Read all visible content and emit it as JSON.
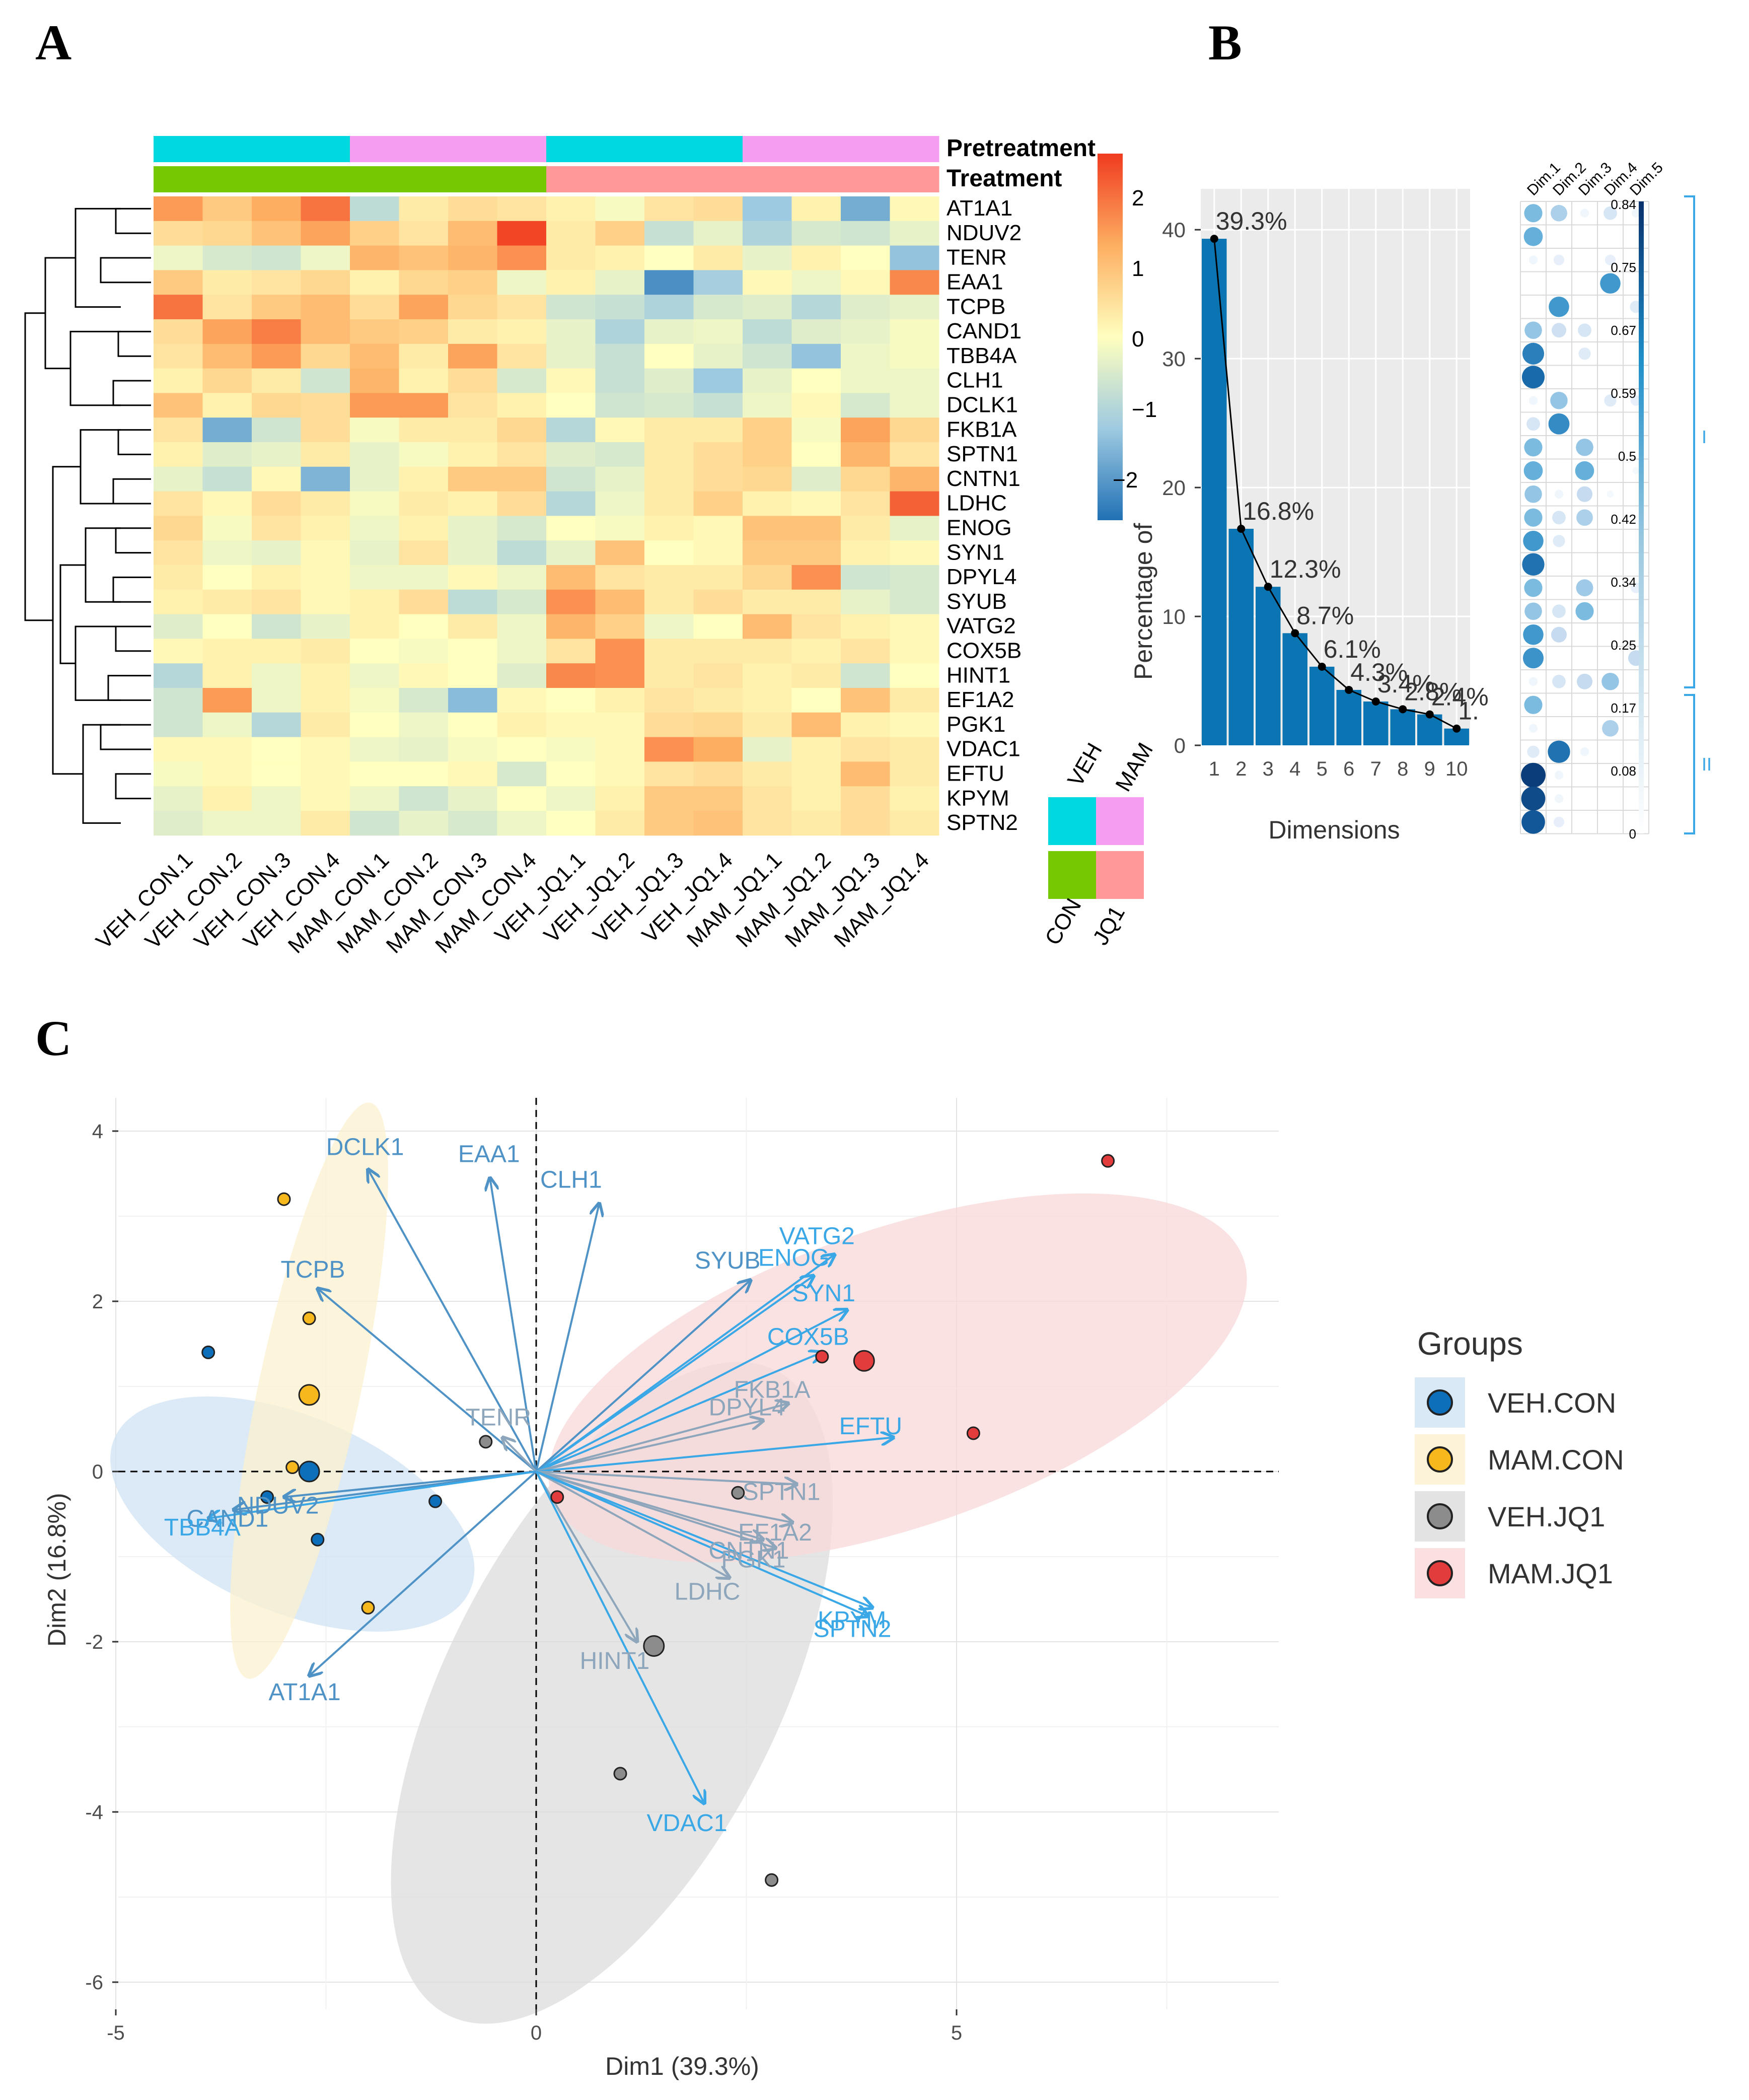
{
  "panels": {
    "a": "A",
    "b": "B",
    "c": "C"
  },
  "colors": {
    "veh": "#00d8e0",
    "mam": "#f59df0",
    "con": "#76c800",
    "jq1": "#ff9898",
    "bar": "#0b74b2",
    "arrow": "#3aa7e6",
    "arrow_dark": "#7fa3bf",
    "veh_con": "#0d6fba",
    "mam_con": "#f7b81e",
    "veh_jq1": "#8c8c8c",
    "mam_jq1": "#e23c3c"
  },
  "chart_data": [
    {
      "type": "heatmap",
      "id": "A",
      "annotation_labels": [
        "Pretreatment",
        "Treatment"
      ],
      "legend_labels": {
        "veh": "VEH",
        "mam": "MAM",
        "con": "CON",
        "jq1": "JQ1"
      },
      "color_scale": {
        "ticks": [
          "2",
          "1",
          "0",
          "−1",
          "−2"
        ],
        "range": [
          -2.4,
          2.4
        ]
      },
      "columns": [
        "VEH_CON.1",
        "VEH_CON.2",
        "VEH_CON.3",
        "VEH_CON.4",
        "MAM_CON.1",
        "MAM_CON.2",
        "MAM_CON.3",
        "MAM_CON.4",
        "VEH_JQ1.1",
        "VEH_JQ1.2",
        "VEH_JQ1.3",
        "VEH_JQ1.4",
        "MAM_JQ1.1",
        "MAM_JQ1.2",
        "MAM_JQ1.3",
        "MAM_JQ1.4"
      ],
      "column_pretreatment": [
        "veh",
        "veh",
        "veh",
        "veh",
        "mam",
        "mam",
        "mam",
        "mam",
        "veh",
        "veh",
        "veh",
        "veh",
        "mam",
        "mam",
        "mam",
        "mam"
      ],
      "column_treatment": [
        "con",
        "con",
        "con",
        "con",
        "con",
        "con",
        "con",
        "con",
        "jq1",
        "jq1",
        "jq1",
        "jq1",
        "jq1",
        "jq1",
        "jq1",
        "jq1"
      ],
      "rows": [
        "AT1A1",
        "NDUV2",
        "TENR",
        "EAA1",
        "TCPB",
        "CAND1",
        "TBB4A",
        "CLH1",
        "DCLK1",
        "FKB1A",
        "SPTN1",
        "CNTN1",
        "LDHC",
        "ENOG",
        "SYN1",
        "DPYL4",
        "SYUB",
        "VATG2",
        "COX5B",
        "HINT1",
        "EF1A2",
        "PGK1",
        "VDAC1",
        "EFTU",
        "KPYM",
        "SPTN2"
      ],
      "values": [
        [
          1.4,
          0.8,
          1.2,
          1.8,
          -0.8,
          0.3,
          0.5,
          0.4,
          0.2,
          -0.1,
          0.4,
          0.5,
          -1.2,
          0.2,
          -1.6,
          0.1
        ],
        [
          0.5,
          0.6,
          0.9,
          1.3,
          0.7,
          0.4,
          1.0,
          2.3,
          0.3,
          0.7,
          -0.7,
          -0.3,
          -1.0,
          -0.5,
          -0.6,
          -0.3
        ],
        [
          -0.2,
          -0.5,
          -0.6,
          -0.2,
          1.1,
          0.9,
          1.1,
          1.5,
          0.3,
          0.2,
          0.0,
          0.3,
          -0.3,
          0.2,
          0.0,
          -1.3
        ],
        [
          0.8,
          0.3,
          0.4,
          0.6,
          0.2,
          0.6,
          0.7,
          -0.2,
          0.2,
          -0.3,
          -2.0,
          -1.1,
          0.1,
          -0.2,
          0.1,
          1.6
        ],
        [
          1.8,
          0.4,
          0.8,
          1.0,
          0.5,
          1.3,
          0.6,
          0.4,
          -0.6,
          -0.7,
          -1.0,
          -0.5,
          -0.4,
          -0.9,
          -0.4,
          -0.3
        ],
        [
          0.5,
          1.3,
          1.7,
          1.0,
          0.8,
          0.7,
          0.3,
          0.2,
          -0.3,
          -1.0,
          -0.3,
          -0.2,
          -0.8,
          -0.4,
          -0.3,
          -0.1
        ],
        [
          0.4,
          1.0,
          1.4,
          0.6,
          1.0,
          0.3,
          1.3,
          0.4,
          -0.3,
          -0.7,
          0.0,
          -0.3,
          -0.6,
          -1.3,
          -0.2,
          -0.1
        ],
        [
          0.2,
          0.6,
          0.3,
          -0.6,
          1.1,
          0.2,
          0.5,
          -0.5,
          0.1,
          -0.7,
          -0.4,
          -1.2,
          -0.3,
          0.0,
          -0.2,
          -0.2
        ],
        [
          0.9,
          0.2,
          0.6,
          0.5,
          1.4,
          1.4,
          0.4,
          0.2,
          0.0,
          -0.6,
          -0.5,
          -0.7,
          -0.2,
          0.1,
          -0.5,
          -0.2
        ],
        [
          0.4,
          -1.6,
          -0.6,
          0.5,
          -0.1,
          0.3,
          0.3,
          0.6,
          -0.9,
          0.1,
          0.3,
          0.3,
          0.7,
          -0.1,
          1.3,
          0.6
        ],
        [
          0.2,
          -0.4,
          -0.3,
          0.3,
          -0.3,
          -0.1,
          0.2,
          0.4,
          -0.4,
          -0.5,
          0.3,
          0.5,
          0.7,
          0.0,
          1.1,
          0.4
        ],
        [
          -0.3,
          -0.7,
          0.1,
          -1.5,
          -0.3,
          0.2,
          0.8,
          0.8,
          -0.6,
          -0.3,
          0.3,
          0.5,
          0.6,
          -0.4,
          0.6,
          1.1
        ],
        [
          0.4,
          0.1,
          0.5,
          0.3,
          -0.1,
          0.3,
          0.2,
          0.5,
          -0.9,
          -0.2,
          0.3,
          0.7,
          0.2,
          0.1,
          0.4,
          2.0
        ],
        [
          0.6,
          -0.1,
          0.4,
          0.2,
          -0.2,
          0.2,
          -0.3,
          -0.5,
          0.0,
          -0.1,
          0.2,
          0.1,
          0.9,
          0.9,
          0.3,
          -0.3
        ],
        [
          0.4,
          -0.2,
          -0.3,
          0.1,
          -0.3,
          0.4,
          -0.3,
          -0.8,
          -0.3,
          0.9,
          0.0,
          0.1,
          0.8,
          0.8,
          0.2,
          0.1
        ],
        [
          0.3,
          0.0,
          0.2,
          0.1,
          -0.2,
          -0.2,
          0.1,
          -0.2,
          1.0,
          0.4,
          0.3,
          0.3,
          0.6,
          1.5,
          -0.6,
          -0.5
        ],
        [
          0.2,
          0.3,
          0.4,
          0.1,
          0.2,
          0.5,
          -0.8,
          -0.5,
          1.5,
          1.0,
          0.3,
          0.5,
          0.3,
          0.3,
          -0.3,
          -0.5
        ],
        [
          -0.4,
          0.0,
          -0.6,
          -0.3,
          0.2,
          0.0,
          0.3,
          -0.2,
          1.1,
          0.7,
          -0.2,
          0.0,
          1.0,
          0.4,
          0.2,
          0.1
        ],
        [
          0.1,
          0.2,
          0.2,
          0.3,
          0.0,
          -0.1,
          0.0,
          -0.2,
          0.4,
          1.5,
          0.3,
          0.3,
          0.3,
          0.2,
          0.4,
          0.1
        ],
        [
          -0.9,
          0.2,
          -0.2,
          0.2,
          -0.2,
          0.1,
          0.0,
          -0.4,
          1.6,
          1.5,
          0.3,
          0.4,
          0.2,
          0.3,
          -0.6,
          0.0
        ],
        [
          -0.6,
          1.4,
          -0.2,
          0.2,
          -0.1,
          -0.5,
          -1.4,
          0.1,
          0.0,
          0.2,
          0.4,
          0.3,
          0.2,
          0.0,
          0.9,
          0.3
        ],
        [
          -0.6,
          -0.2,
          -0.9,
          0.3,
          0.0,
          -0.2,
          0.0,
          0.2,
          0.1,
          0.1,
          0.5,
          0.6,
          0.3,
          1.0,
          0.2,
          0.1
        ],
        [
          0.1,
          0.1,
          0.0,
          0.1,
          -0.2,
          -0.3,
          -0.1,
          0.0,
          -0.1,
          0.1,
          1.5,
          1.2,
          -0.3,
          0.2,
          0.4,
          0.3
        ],
        [
          -0.1,
          0.1,
          0.0,
          0.1,
          0.0,
          0.0,
          0.1,
          -0.5,
          0.0,
          0.1,
          0.4,
          0.5,
          0.3,
          0.2,
          1.0,
          0.3
        ],
        [
          -0.3,
          0.2,
          -0.2,
          0.1,
          -0.2,
          -0.6,
          -0.3,
          0.0,
          -0.2,
          0.2,
          0.8,
          0.8,
          0.4,
          0.2,
          0.5,
          0.2
        ],
        [
          -0.4,
          -0.2,
          -0.2,
          0.3,
          -0.6,
          -0.3,
          -0.5,
          -0.2,
          0.0,
          0.3,
          0.8,
          0.9,
          0.4,
          0.3,
          0.5,
          0.3
        ]
      ]
    },
    {
      "type": "bar",
      "id": "B-scree",
      "xlabel": "Dimensions",
      "ylabel": "Percentage of",
      "categories": [
        "1",
        "2",
        "3",
        "4",
        "5",
        "6",
        "7",
        "8",
        "9",
        "10"
      ],
      "values": [
        39.3,
        16.8,
        12.3,
        8.7,
        6.1,
        4.3,
        3.4,
        2.8,
        2.4,
        1.3
      ],
      "data_labels": [
        "39.3%",
        "16.8%",
        "12.3%",
        "8.7%",
        "6.1%",
        "4.3%",
        "3.4%",
        "2.8%",
        "2.4%",
        "1."
      ],
      "ylim": [
        0,
        42
      ],
      "yticks": [
        "0",
        "10",
        "20",
        "30",
        "40"
      ],
      "line_overlay": true
    },
    {
      "type": "heatmap",
      "id": "B-dotplot",
      "columns": [
        "Dim.1",
        "Dim.2",
        "Dim.3",
        "Dim.4",
        "Dim.5"
      ],
      "color_ticks": [
        "0.84",
        "0.75",
        "0.67",
        "0.59",
        "0.5",
        "0.42",
        "0.34",
        "0.25",
        "0.17",
        "0.08",
        "0"
      ],
      "bracket_labels": [
        "I",
        "II"
      ],
      "values": [
        [
          0.45,
          0.35,
          0.05,
          0.2,
          0.05
        ],
        [
          0.5,
          0.0,
          0.0,
          0.0,
          0.0
        ],
        [
          0.05,
          0.1,
          0.0,
          0.1,
          0.0
        ],
        [
          0.0,
          0.0,
          0.0,
          0.6,
          0.0
        ],
        [
          0.0,
          0.6,
          0.0,
          0.0,
          0.15
        ],
        [
          0.4,
          0.25,
          0.2,
          0.0,
          0.0
        ],
        [
          0.7,
          0.0,
          0.15,
          0.0,
          0.0
        ],
        [
          0.78,
          0.0,
          0.0,
          0.0,
          0.0
        ],
        [
          0.05,
          0.4,
          0.0,
          0.15,
          0.1
        ],
        [
          0.2,
          0.65,
          0.0,
          0.0,
          0.0
        ],
        [
          0.45,
          0.0,
          0.4,
          0.0,
          0.0
        ],
        [
          0.5,
          0.0,
          0.5,
          0.0,
          0.02
        ],
        [
          0.4,
          0.05,
          0.3,
          0.02,
          0.0
        ],
        [
          0.45,
          0.2,
          0.35,
          0.0,
          0.0
        ],
        [
          0.6,
          0.15,
          0.0,
          0.0,
          0.0
        ],
        [
          0.75,
          0.0,
          0.0,
          0.0,
          0.0
        ],
        [
          0.45,
          0.0,
          0.38,
          0.0,
          0.1
        ],
        [
          0.4,
          0.2,
          0.45,
          0.0,
          0.0
        ],
        [
          0.6,
          0.3,
          0.0,
          0.0,
          0.0
        ],
        [
          0.62,
          0.0,
          0.0,
          0.0,
          0.3
        ],
        [
          0.05,
          0.2,
          0.3,
          0.4,
          0.0
        ],
        [
          0.45,
          0.0,
          0.0,
          0.0,
          0.0
        ],
        [
          0.05,
          0.0,
          0.0,
          0.35,
          0.0
        ],
        [
          0.15,
          0.75,
          0.05,
          0.0,
          0.0
        ],
        [
          0.95,
          0.05,
          0.0,
          0.0,
          0.0
        ],
        [
          0.9,
          0.05,
          0.0,
          0.0,
          0.0
        ],
        [
          0.85,
          0.1,
          0.0,
          0.0,
          0.0
        ]
      ]
    },
    {
      "type": "scatter",
      "id": "C-biplot",
      "xlabel": "Dim1 (39.3%)",
      "ylabel": "Dim2 (16.8%)",
      "xlim": [
        -5,
        8.8
      ],
      "ylim": [
        -6.3,
        4.2
      ],
      "xticks": [
        "-5",
        "0",
        "5"
      ],
      "xtick_values": [
        -5,
        0,
        5
      ],
      "yticks": [
        "4",
        "2",
        "0",
        "-2",
        "-4",
        "-6"
      ],
      "ytick_values": [
        4,
        2,
        0,
        -2,
        -4,
        -6
      ],
      "legend": {
        "title": "Groups",
        "entries": [
          "VEH.CON",
          "MAM.CON",
          "VEH.JQ1",
          "MAM.JQ1"
        ]
      },
      "ellipses": [
        {
          "group": "VEH.CON",
          "cx": -2.9,
          "cy": -0.5,
          "rx": 2.3,
          "ry": 1.15,
          "angle": -23
        },
        {
          "group": "MAM.CON",
          "cx": -2.7,
          "cy": 0.95,
          "rx": 3.5,
          "ry": 0.6,
          "angle": 78
        },
        {
          "group": "VEH.JQ1",
          "cx": 0.9,
          "cy": -2.6,
          "rx": 4.3,
          "ry": 1.95,
          "angle": 63
        },
        {
          "group": "MAM.JQ1",
          "cx": 4.3,
          "cy": 1.1,
          "rx": 4.35,
          "ry": 1.75,
          "angle": 19
        }
      ],
      "points": [
        {
          "group": "VEH.CON",
          "x": -3.9,
          "y": 1.4,
          "size": "small"
        },
        {
          "group": "VEH.CON",
          "x": -3.2,
          "y": -0.3,
          "size": "small"
        },
        {
          "group": "VEH.CON",
          "x": -2.6,
          "y": -0.8,
          "size": "small"
        },
        {
          "group": "VEH.CON",
          "x": -1.2,
          "y": -0.35,
          "size": "small"
        },
        {
          "group": "VEH.CON",
          "x": -2.7,
          "y": 0.0,
          "size": "large"
        },
        {
          "group": "MAM.CON",
          "x": -3.0,
          "y": 3.2,
          "size": "small"
        },
        {
          "group": "MAM.CON",
          "x": -2.7,
          "y": 1.8,
          "size": "small"
        },
        {
          "group": "MAM.CON",
          "x": -2.9,
          "y": 0.05,
          "size": "small"
        },
        {
          "group": "MAM.CON",
          "x": -2.0,
          "y": -1.6,
          "size": "small"
        },
        {
          "group": "MAM.CON",
          "x": -2.7,
          "y": 0.9,
          "size": "large"
        },
        {
          "group": "VEH.JQ1",
          "x": -0.6,
          "y": 0.35,
          "size": "small"
        },
        {
          "group": "VEH.JQ1",
          "x": 2.4,
          "y": -0.25,
          "size": "small"
        },
        {
          "group": "VEH.JQ1",
          "x": 1.0,
          "y": -3.55,
          "size": "small"
        },
        {
          "group": "VEH.JQ1",
          "x": 2.8,
          "y": -4.8,
          "size": "small"
        },
        {
          "group": "VEH.JQ1",
          "x": 1.4,
          "y": -2.05,
          "size": "large"
        },
        {
          "group": "MAM.JQ1",
          "x": 6.8,
          "y": 3.65,
          "size": "small"
        },
        {
          "group": "MAM.JQ1",
          "x": 5.2,
          "y": 0.45,
          "size": "small"
        },
        {
          "group": "MAM.JQ1",
          "x": 0.25,
          "y": -0.3,
          "size": "small"
        },
        {
          "group": "MAM.JQ1",
          "x": 3.4,
          "y": 1.35,
          "size": "small"
        },
        {
          "group": "MAM.JQ1",
          "x": 3.9,
          "y": 1.3,
          "size": "large"
        }
      ],
      "vectors": [
        {
          "name": "DCLK1",
          "x": -2.0,
          "y": 3.55,
          "shade": "mid"
        },
        {
          "name": "EAA1",
          "x": -0.55,
          "y": 3.45,
          "shade": "mid"
        },
        {
          "name": "CLH1",
          "x": 0.75,
          "y": 3.15,
          "shade": "mid"
        },
        {
          "name": "TCPB",
          "x": -2.6,
          "y": 2.15,
          "shade": "mid"
        },
        {
          "name": "TENR",
          "x": -0.4,
          "y": 0.4,
          "shade": "dark"
        },
        {
          "name": "CAND1",
          "x": -3.6,
          "y": -0.45,
          "shade": "mid"
        },
        {
          "name": "NDUV2",
          "x": -3.0,
          "y": -0.3,
          "shade": "mid"
        },
        {
          "name": "TBB4A",
          "x": -3.9,
          "y": -0.55,
          "shade": "bright"
        },
        {
          "name": "AT1A1",
          "x": -2.7,
          "y": -2.4,
          "shade": "mid"
        },
        {
          "name": "VATG2",
          "x": 3.55,
          "y": 2.55,
          "shade": "bright"
        },
        {
          "name": "ENOG",
          "x": 3.3,
          "y": 2.3,
          "shade": "bright"
        },
        {
          "name": "SYUB",
          "x": 2.55,
          "y": 2.25,
          "shade": "mid"
        },
        {
          "name": "SYN1",
          "x": 3.7,
          "y": 1.9,
          "shade": "bright"
        },
        {
          "name": "COX5B",
          "x": 3.4,
          "y": 1.4,
          "shade": "bright"
        },
        {
          "name": "FKB1A",
          "x": 3.0,
          "y": 0.8,
          "shade": "dark"
        },
        {
          "name": "DPYL4",
          "x": 2.7,
          "y": 0.6,
          "shade": "dark"
        },
        {
          "name": "EFTU",
          "x": 4.25,
          "y": 0.4,
          "shade": "bright"
        },
        {
          "name": "SPTN1",
          "x": 3.1,
          "y": -0.15,
          "shade": "dark"
        },
        {
          "name": "EF1A2",
          "x": 3.05,
          "y": -0.6,
          "shade": "dark"
        },
        {
          "name": "CNTN1",
          "x": 2.7,
          "y": -0.8,
          "shade": "dark"
        },
        {
          "name": "PGK1",
          "x": 2.85,
          "y": -0.9,
          "shade": "dark"
        },
        {
          "name": "LDHC",
          "x": 2.3,
          "y": -1.25,
          "shade": "dark"
        },
        {
          "name": "KPYM",
          "x": 4.0,
          "y": -1.6,
          "shade": "bright"
        },
        {
          "name": "SPTN2",
          "x": 3.95,
          "y": -1.7,
          "shade": "bright"
        },
        {
          "name": "HINT1",
          "x": 1.2,
          "y": -2.0,
          "shade": "dark"
        },
        {
          "name": "VDAC1",
          "x": 2.0,
          "y": -3.9,
          "shade": "bright"
        }
      ]
    }
  ]
}
